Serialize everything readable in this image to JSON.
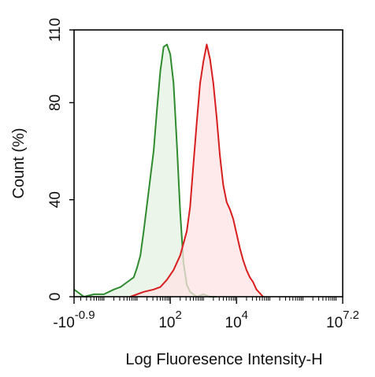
{
  "chart_data": {
    "type": "area",
    "xlabel": "Log Fluoresence Intensity-H",
    "ylabel": "Count  (%)",
    "ylim": [
      0,
      110
    ],
    "yticks": [
      0,
      40,
      80,
      110
    ],
    "ytick_labels": [
      "0",
      "40",
      "80",
      "110"
    ],
    "xscale": "log (biexponential)",
    "xlim_exponent": [
      -0.9,
      7.2
    ],
    "xticks": [
      {
        "value_exponent": -0.9,
        "base": "-10",
        "exp": "-0.9"
      },
      {
        "value_exponent": 2,
        "base": "10",
        "exp": "2"
      },
      {
        "value_exponent": 4,
        "base": "10",
        "exp": "4"
      },
      {
        "value_exponent": 7.2,
        "base": "10",
        "exp": "7.2"
      }
    ],
    "grid": false,
    "series": [
      {
        "color": "#2e8b2e",
        "fill": "#e6f2e3",
        "x_exponent": [
          -0.9,
          -0.6,
          -0.3,
          0.0,
          0.3,
          0.5,
          0.7,
          0.9,
          1.0,
          1.1,
          1.2,
          1.3,
          1.4,
          1.5,
          1.6,
          1.7,
          1.8,
          1.9,
          2.0,
          2.1,
          2.2,
          2.3,
          2.4,
          2.5,
          2.6,
          2.7,
          2.8,
          3.0,
          3.2,
          3.4
        ],
        "y": [
          3,
          0,
          1,
          1,
          3,
          4,
          6,
          8,
          12,
          17,
          27,
          38,
          49,
          60,
          77,
          93,
          103,
          104,
          100,
          88,
          63,
          35,
          14,
          5,
          2,
          1,
          0,
          1,
          0,
          0
        ]
      },
      {
        "color": "#d81e1e",
        "fill": "#fde3e3",
        "x_exponent": [
          0.8,
          1.2,
          1.5,
          1.7,
          1.9,
          2.1,
          2.3,
          2.5,
          2.6,
          2.7,
          2.8,
          2.9,
          3.0,
          3.1,
          3.2,
          3.3,
          3.4,
          3.5,
          3.6,
          3.7,
          3.8,
          3.9,
          4.0,
          4.1,
          4.2,
          4.3,
          4.4,
          4.5,
          4.6,
          4.8
        ],
        "y": [
          0,
          2,
          3,
          4,
          7,
          11,
          17,
          27,
          37,
          55,
          72,
          88,
          97,
          104,
          98,
          88,
          74,
          58,
          46,
          39,
          36,
          32,
          26,
          20,
          15,
          11,
          8,
          6,
          3,
          0
        ]
      }
    ]
  }
}
